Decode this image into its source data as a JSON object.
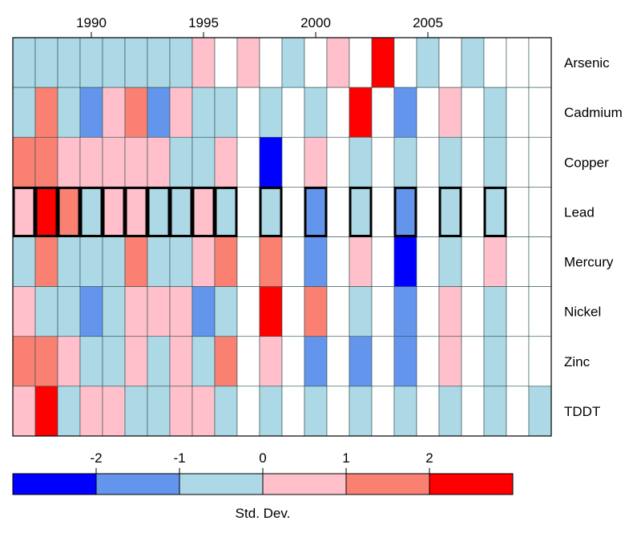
{
  "chart_data": {
    "type": "heatmap",
    "title": "",
    "xlabel": "",
    "ylabel": "",
    "years": [
      1987,
      1988,
      1989,
      1990,
      1991,
      1992,
      1993,
      1994,
      1995,
      1996,
      1997,
      1998,
      1999,
      2000,
      2001,
      2002,
      2003,
      2004,
      2005,
      2006,
      2007,
      2008,
      2009,
      2010
    ],
    "x_tick_labels": [
      "1990",
      "1995",
      "2000",
      "2005"
    ],
    "x_tick_years": [
      1990,
      1995,
      2000,
      2005
    ],
    "rows": [
      "Arsenic",
      "Cadmium",
      "Copper",
      "Lead",
      "Mercury",
      "Nickel",
      "Zinc",
      "TDDT"
    ],
    "category_scale": "std-dev bins: 1 = below -2, 2 = -2 to -1, 3 = -1 to 0, 4 = 0 to 1, 5 = 1 to 2, 6 = above 2, 0 = no data",
    "categories": [
      [
        3,
        3,
        3,
        3,
        3,
        3,
        3,
        3,
        4,
        0,
        4,
        0,
        3,
        0,
        4,
        0,
        6,
        0,
        3,
        0,
        3,
        0,
        0,
        0
      ],
      [
        3,
        5,
        3,
        2,
        4,
        5,
        2,
        4,
        3,
        3,
        0,
        3,
        0,
        3,
        0,
        6,
        0,
        2,
        0,
        4,
        0,
        3,
        0,
        0
      ],
      [
        5,
        5,
        4,
        4,
        4,
        4,
        4,
        3,
        3,
        4,
        0,
        1,
        0,
        4,
        0,
        3,
        0,
        3,
        0,
        3,
        0,
        3,
        0,
        0
      ],
      [
        4,
        6,
        5,
        3,
        4,
        4,
        3,
        3,
        4,
        3,
        0,
        3,
        0,
        2,
        0,
        3,
        0,
        2,
        0,
        3,
        0,
        3,
        0,
        0
      ],
      [
        3,
        5,
        3,
        3,
        3,
        5,
        3,
        3,
        4,
        5,
        0,
        5,
        0,
        2,
        0,
        4,
        0,
        1,
        0,
        3,
        0,
        4,
        0,
        0
      ],
      [
        4,
        3,
        3,
        2,
        3,
        4,
        4,
        4,
        2,
        3,
        0,
        6,
        0,
        5,
        0,
        3,
        0,
        2,
        0,
        4,
        0,
        3,
        0,
        0
      ],
      [
        5,
        5,
        4,
        3,
        3,
        4,
        3,
        4,
        3,
        5,
        0,
        4,
        0,
        2,
        0,
        2,
        0,
        2,
        0,
        4,
        0,
        3,
        0,
        0
      ],
      [
        4,
        6,
        3,
        4,
        4,
        3,
        3,
        4,
        4,
        3,
        0,
        3,
        0,
        3,
        0,
        3,
        0,
        3,
        0,
        3,
        0,
        3,
        0,
        3
      ]
    ],
    "highlighted_row": "Lead",
    "highlighted_years": [
      1987,
      1988,
      1989,
      1990,
      1991,
      1992,
      1993,
      1994,
      1995,
      1996,
      1998,
      2000,
      2002,
      2004,
      2006,
      2008
    ],
    "legend": {
      "title": "Std. Dev.",
      "tick_labels": [
        "-2",
        "-1",
        "0",
        "1",
        "2"
      ],
      "colors": [
        "#0000ff",
        "#6495ed",
        "#add8e6",
        "#ffc0cb",
        "#fa8072",
        "#ff0000"
      ]
    },
    "missing_color": "#ffffff",
    "grid": true
  }
}
